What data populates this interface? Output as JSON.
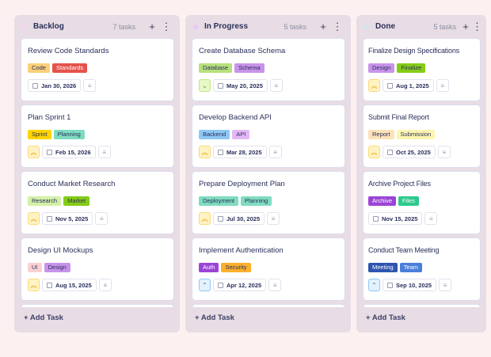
{
  "columns": [
    {
      "title": "Backlog",
      "count": "7 tasks",
      "dot": "#f5d5f0",
      "add_label": "+ Add Task",
      "cards": [
        {
          "title": "Review Code Standards",
          "priority": "none",
          "date": "Jan 30, 2026",
          "tags": [
            {
              "label": "Code",
              "bg": "#fcd07a",
              "fg": "#2a2f5b"
            },
            {
              "label": "Standards",
              "bg": "#e5534b",
              "fg": "#ffffff"
            }
          ]
        },
        {
          "title": "Plan Sprint 1",
          "priority": "high",
          "date": "Feb 15, 2026",
          "tags": [
            {
              "label": "Sprint",
              "bg": "#ffd400",
              "fg": "#2a2f5b"
            },
            {
              "label": "Planning",
              "bg": "#7fdcc0",
              "fg": "#2a2f5b"
            }
          ]
        },
        {
          "title": "Conduct Market Research",
          "priority": "high",
          "date": "Nov 5, 2025",
          "tags": [
            {
              "label": "Research",
              "bg": "#d3f0a8",
              "fg": "#2a2f5b"
            },
            {
              "label": "Market",
              "bg": "#84cc16",
              "fg": "#2a2f5b"
            }
          ]
        },
        {
          "title": "Design UI Mockups",
          "priority": "high",
          "date": "Aug 15, 2025",
          "tags": [
            {
              "label": "UI",
              "bg": "#f8d2d2",
              "fg": "#2a2f5b"
            },
            {
              "label": "Design",
              "bg": "#c893ea",
              "fg": "#2a2f5b"
            }
          ]
        }
      ]
    },
    {
      "title": "In Progress",
      "count": "5 tasks",
      "dot": "#e9c6f5",
      "add_label": "+ Add Task",
      "cards": [
        {
          "title": "Create Database Schema",
          "priority": "low",
          "date": "May 20, 2025",
          "tags": [
            {
              "label": "Database",
              "bg": "#b7e07c",
              "fg": "#2a2f5b"
            },
            {
              "label": "Schema",
              "bg": "#c893ea",
              "fg": "#2a2f5b"
            }
          ]
        },
        {
          "title": "Develop Backend API",
          "priority": "high",
          "date": "Mar 28, 2025",
          "tags": [
            {
              "label": "Backend",
              "bg": "#8ec8f6",
              "fg": "#2a2f5b"
            },
            {
              "label": "API",
              "bg": "#e3b8f7",
              "fg": "#2a2f5b"
            }
          ]
        },
        {
          "title": "Prepare Deployment Plan",
          "priority": "high",
          "date": "Jul 30, 2025",
          "tags": [
            {
              "label": "Deployment",
              "bg": "#7fdcc0",
              "fg": "#2a2f5b"
            },
            {
              "label": "Planning",
              "bg": "#7fdcc0",
              "fg": "#2a2f5b"
            }
          ]
        },
        {
          "title": "Implement Authentication",
          "priority": "medium",
          "date": "Apr 12, 2025",
          "tags": [
            {
              "label": "Auth",
              "bg": "#9b45d6",
              "fg": "#ffffff"
            },
            {
              "label": "Security",
              "bg": "#fbb02d",
              "fg": "#2a2f5b"
            }
          ]
        }
      ]
    },
    {
      "title": "Done",
      "count": "5 tasks",
      "dot": "#cfe3f5",
      "add_label": "+ Add Task",
      "cards": [
        {
          "title": "Finalize Design Specifications",
          "priority": "high",
          "date": "Aug 1, 2025",
          "tags": [
            {
              "label": "Design",
              "bg": "#c893ea",
              "fg": "#2a2f5b"
            },
            {
              "label": "Finalize",
              "bg": "#84cc16",
              "fg": "#2a2f5b"
            }
          ]
        },
        {
          "title": "Submit Final Report",
          "priority": "high",
          "date": "Oct 25, 2025",
          "tags": [
            {
              "label": "Report",
              "bg": "#fde2b8",
              "fg": "#2a2f5b"
            },
            {
              "label": "Submission",
              "bg": "#fdf5b0",
              "fg": "#2a2f5b"
            }
          ]
        },
        {
          "title": "Archive Project Files",
          "priority": "none",
          "date": "Nov 15, 2025",
          "tags": [
            {
              "label": "Archive",
              "bg": "#9b45d6",
              "fg": "#ffffff"
            },
            {
              "label": "Files",
              "bg": "#2ec98e",
              "fg": "#ffffff"
            }
          ]
        },
        {
          "title": "Conduct Team Meeting",
          "priority": "medium",
          "date": "Sep 10, 2025",
          "tags": [
            {
              "label": "Meeting",
              "bg": "#2f55b0",
              "fg": "#ffffff"
            },
            {
              "label": "Team",
              "bg": "#4a7fd9",
              "fg": "#ffffff"
            }
          ]
        }
      ]
    }
  ]
}
